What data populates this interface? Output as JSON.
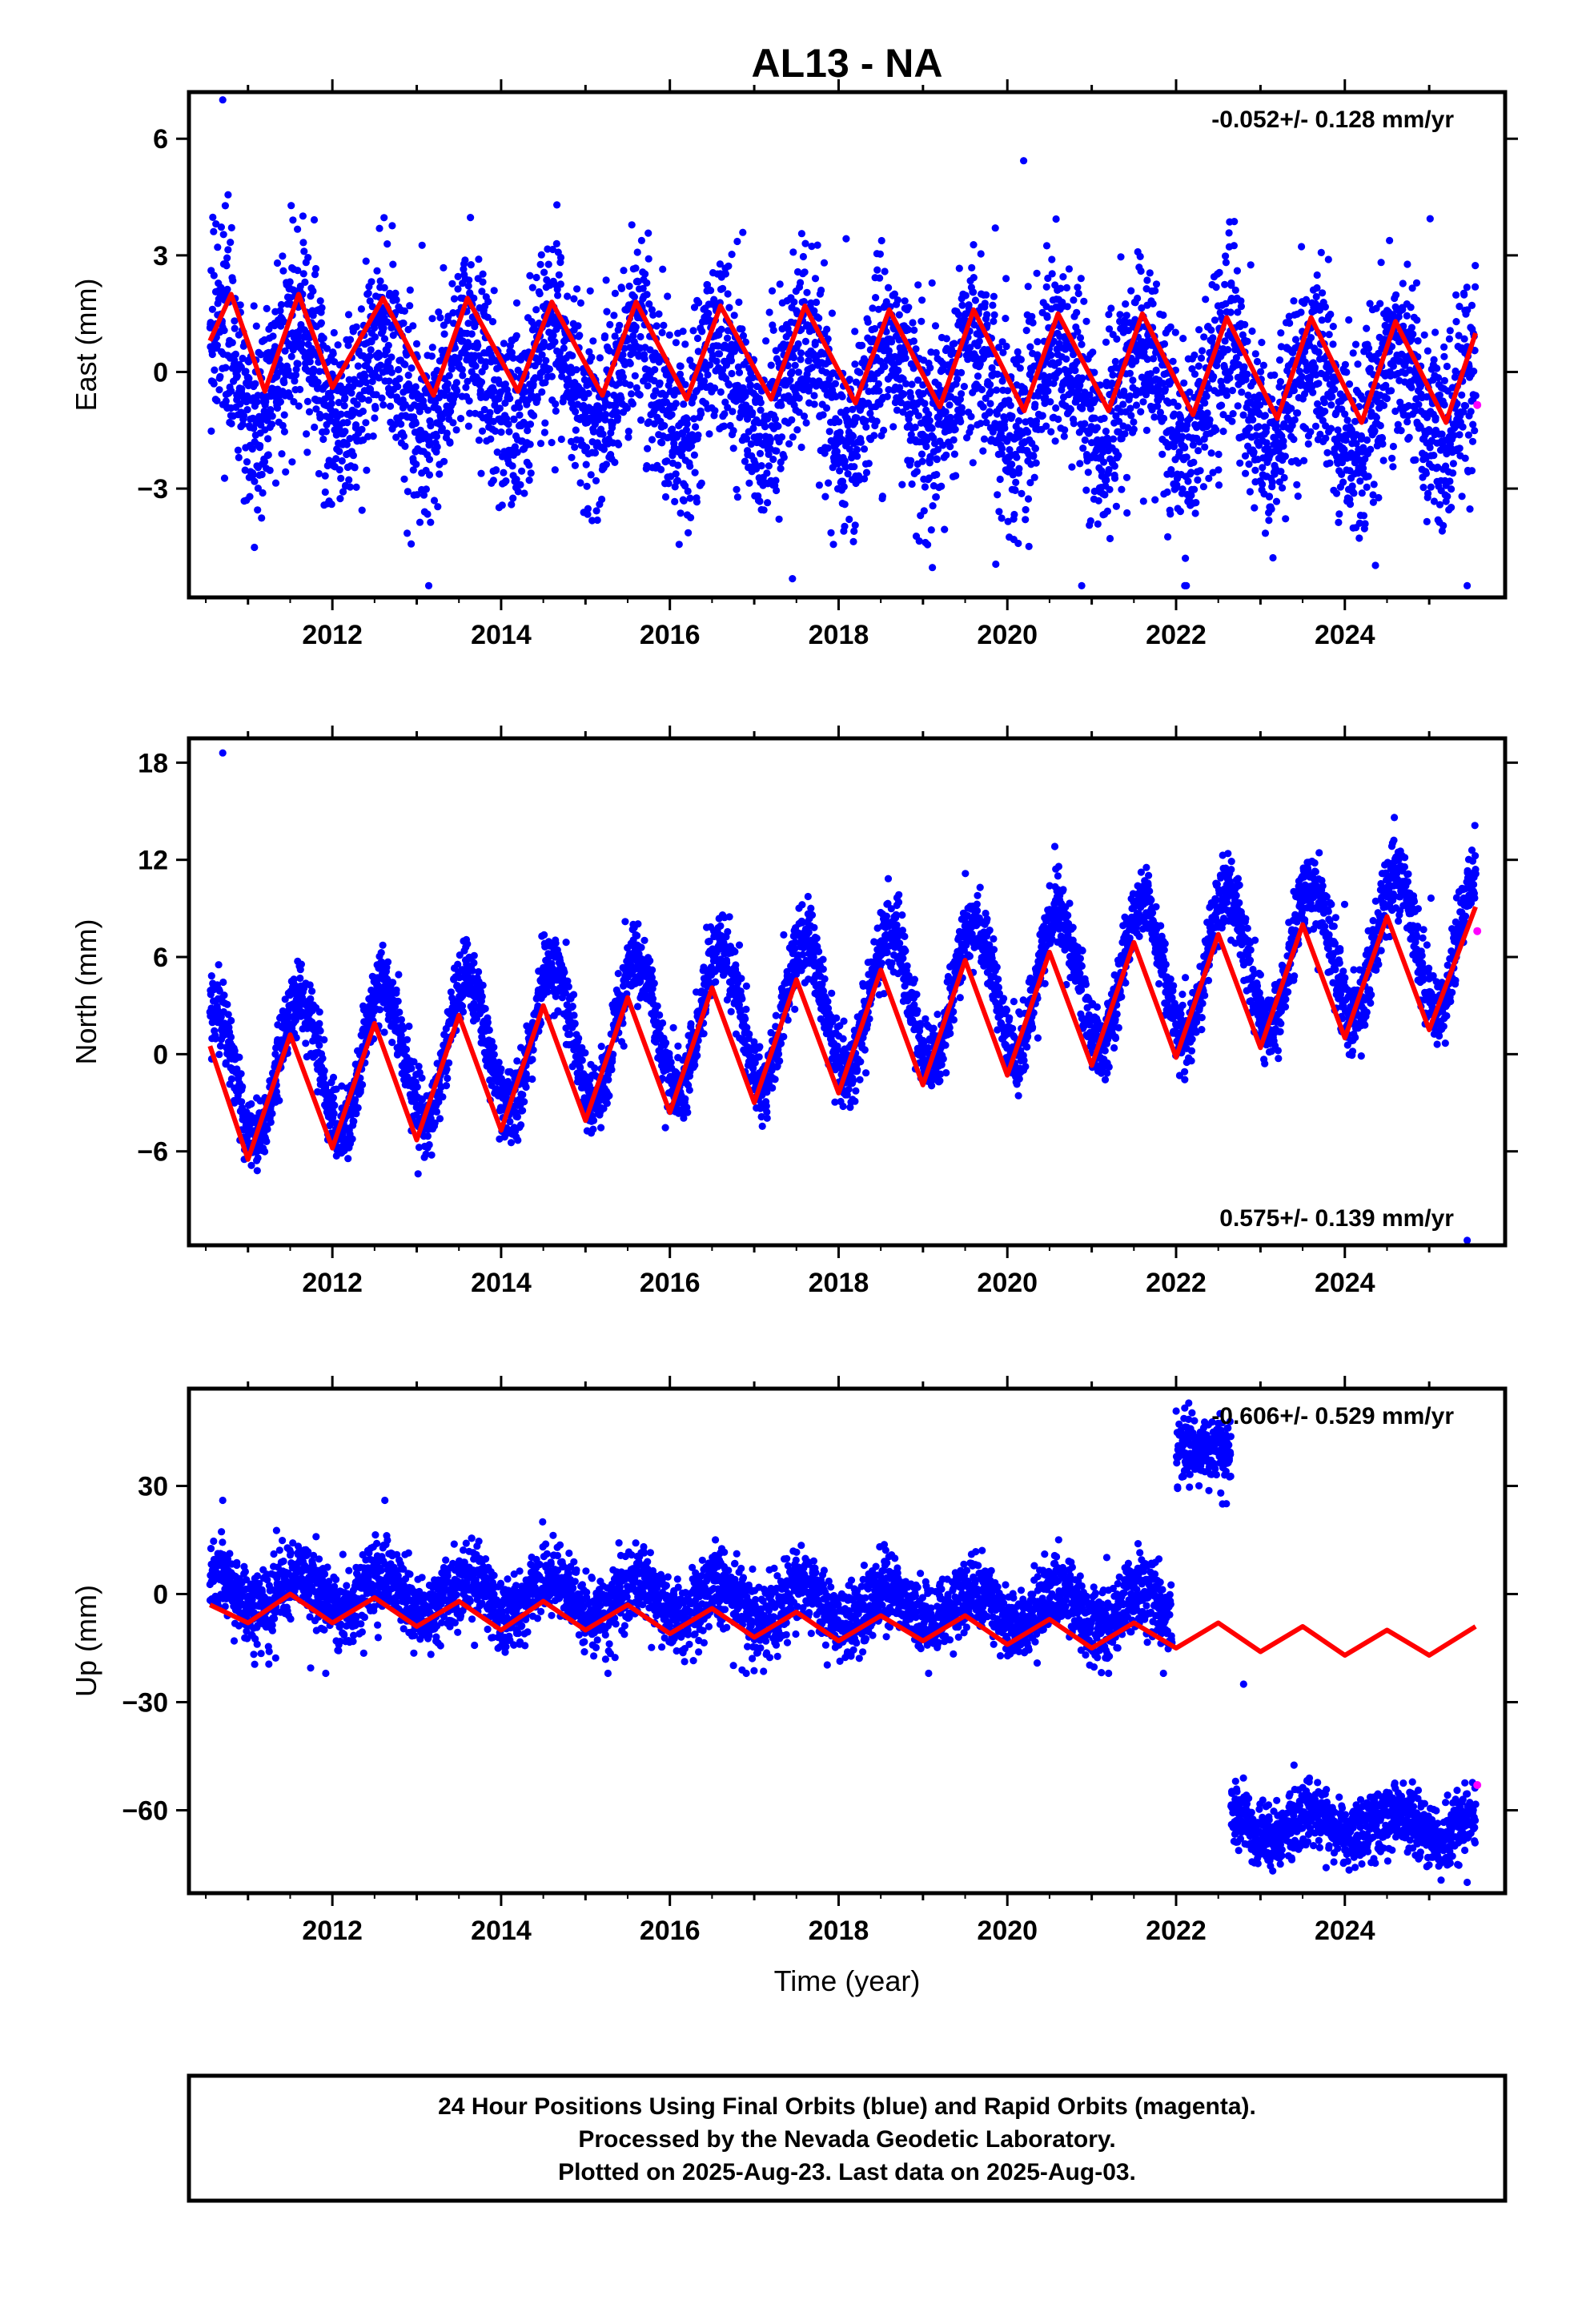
{
  "title": "AL13 - NA",
  "xlabel": "Time (year)",
  "footer": {
    "line1": "24 Hour Positions Using Final Orbits (blue) and Rapid Orbits (magenta).",
    "line2": "Processed by the Nevada Geodetic Laboratory.",
    "line3": "Plotted on 2025-Aug-23. Last data on 2025-Aug-03."
  },
  "colors": {
    "final": "#0000ff",
    "rapid": "#ff00ff",
    "model": "#ff0000"
  },
  "chart_data": [
    {
      "type": "scatter",
      "panel": "east",
      "title": "AL13 - NA",
      "ylabel": "East (mm)",
      "xlabel": "",
      "rate_label": "-0.052+/- 0.128 mm/yr",
      "rate_position": "top-right",
      "xlim": [
        2010.3,
        2025.9
      ],
      "ylim": [
        -5.8,
        7.2
      ],
      "xticks": [
        2012,
        2014,
        2016,
        2018,
        2020,
        2022,
        2024
      ],
      "yticks": [
        -3,
        0,
        3,
        6
      ],
      "ytick_labels": [
        "−3",
        "0",
        "3",
        "6"
      ],
      "grid": false,
      "series": [
        {
          "kind": "daily_positions_final",
          "span": [
            2010.55,
            2025.55
          ],
          "mean": 0.0,
          "trend_mm_per_yr": -0.052,
          "annual_amp": 1.2,
          "scatter": 1.2,
          "extremes": [
            -5.5,
            7.0
          ]
        },
        {
          "kind": "model_fit",
          "x": [
            2010.55,
            2010.8,
            2011.2,
            2011.6,
            2012.0,
            2012.6,
            2013.2,
            2013.6,
            2014.2,
            2014.6,
            2015.2,
            2015.6,
            2016.2,
            2016.6,
            2017.2,
            2017.6,
            2018.2,
            2018.6,
            2019.2,
            2019.6,
            2020.2,
            2020.6,
            2021.2,
            2021.6,
            2022.2,
            2022.6,
            2023.2,
            2023.6,
            2024.2,
            2024.6,
            2025.2,
            2025.55
          ],
          "y": [
            0.8,
            2.0,
            -0.5,
            2.0,
            -0.4,
            1.9,
            -0.6,
            1.9,
            -0.5,
            1.8,
            -0.6,
            1.8,
            -0.7,
            1.7,
            -0.7,
            1.7,
            -0.8,
            1.6,
            -0.9,
            1.6,
            -1.0,
            1.5,
            -1.0,
            1.5,
            -1.1,
            1.4,
            -1.2,
            1.4,
            -1.3,
            1.3,
            -1.3,
            1.0
          ]
        },
        {
          "kind": "daily_positions_rapid",
          "x": [
            2025.57
          ],
          "y": [
            -0.85
          ]
        }
      ]
    },
    {
      "type": "scatter",
      "panel": "north",
      "ylabel": "North (mm)",
      "xlabel": "",
      "rate_label": "0.575+/- 0.139 mm/yr",
      "rate_position": "bottom-right",
      "xlim": [
        2010.3,
        2025.9
      ],
      "ylim": [
        -11.8,
        19.5
      ],
      "xticks": [
        2012,
        2014,
        2016,
        2018,
        2020,
        2022,
        2024
      ],
      "yticks": [
        -6,
        0,
        6,
        12,
        18
      ],
      "ytick_labels": [
        "−6",
        "0",
        "6",
        "12",
        "18"
      ],
      "grid": false,
      "series": [
        {
          "kind": "daily_positions_final",
          "span": [
            2010.55,
            2025.55
          ],
          "mean": -1.3,
          "trend_mm_per_yr": 0.575,
          "annual_amp": 4.3,
          "scatter": 1.1,
          "extremes": [
            -11.5,
            18.6
          ]
        },
        {
          "kind": "model_fit",
          "x": [
            2010.55,
            2011.0,
            2011.5,
            2012.0,
            2012.5,
            2013.0,
            2013.5,
            2014.0,
            2014.5,
            2015.0,
            2015.5,
            2016.0,
            2016.5,
            2017.0,
            2017.5,
            2018.0,
            2018.5,
            2019.0,
            2019.5,
            2020.0,
            2020.5,
            2021.0,
            2021.5,
            2022.0,
            2022.5,
            2023.0,
            2023.5,
            2024.0,
            2024.5,
            2025.0,
            2025.55
          ],
          "y": [
            0.5,
            -6.5,
            1.2,
            -5.8,
            1.9,
            -5.3,
            2.4,
            -4.7,
            3.0,
            -4.1,
            3.5,
            -3.6,
            4.1,
            -3.0,
            4.6,
            -2.4,
            5.2,
            -1.9,
            5.8,
            -1.3,
            6.3,
            -0.7,
            6.9,
            -0.2,
            7.4,
            0.4,
            8.0,
            1.0,
            8.5,
            1.5,
            9.1
          ]
        },
        {
          "kind": "daily_positions_rapid",
          "x": [
            2025.57
          ],
          "y": [
            7.6
          ]
        }
      ]
    },
    {
      "type": "scatter",
      "panel": "up",
      "ylabel": "Up (mm)",
      "xlabel": "Time (year)",
      "rate_label": "-0.606+/- 0.529 mm/yr",
      "rate_position": "top-right",
      "xlim": [
        2010.3,
        2025.9
      ],
      "ylim": [
        -83,
        57
      ],
      "xticks": [
        2012,
        2014,
        2016,
        2018,
        2020,
        2022,
        2024
      ],
      "yticks": [
        -60,
        -30,
        0,
        30
      ],
      "ytick_labels": [
        "−60",
        "−30",
        "0",
        "30"
      ],
      "grid": false,
      "series": [
        {
          "kind": "daily_positions_final",
          "span": [
            2010.55,
            2021.95
          ],
          "mean": 1.0,
          "trend_mm_per_yr": -0.5,
          "annual_amp": 5.0,
          "scatter": 5.0,
          "extremes": [
            -22,
            26
          ]
        },
        {
          "kind": "daily_positions_final",
          "span": [
            2022.0,
            2022.65
          ],
          "mean": 40.0,
          "trend_mm_per_yr": 0.0,
          "annual_amp": 0.0,
          "scatter": 4.5,
          "extremes": [
            25,
            53
          ]
        },
        {
          "kind": "daily_positions_final",
          "span": [
            2022.65,
            2025.55
          ],
          "mean": -64.0,
          "trend_mm_per_yr": 0.0,
          "annual_amp": 3.5,
          "scatter": 4.5,
          "extremes": [
            -80,
            -25
          ]
        },
        {
          "kind": "model_fit",
          "x": [
            2010.55,
            2011.0,
            2011.5,
            2012.0,
            2012.5,
            2013.0,
            2013.5,
            2014.0,
            2014.5,
            2015.0,
            2015.5,
            2016.0,
            2016.5,
            2017.0,
            2017.5,
            2018.0,
            2018.5,
            2019.0,
            2019.5,
            2020.0,
            2020.5,
            2021.0,
            2021.5,
            2022.0,
            2022.5,
            2023.0,
            2023.5,
            2024.0,
            2024.5,
            2025.0,
            2025.55
          ],
          "y": [
            -3,
            -8,
            0,
            -8,
            -1,
            -9,
            -2,
            -10,
            -2,
            -10,
            -3,
            -11,
            -4,
            -12,
            -5,
            -13,
            -6,
            -13,
            -6,
            -14,
            -7,
            -15,
            -8,
            -15,
            -8,
            -16,
            -9,
            -17,
            -10,
            -17,
            -9
          ]
        },
        {
          "kind": "daily_positions_rapid",
          "x": [
            2025.57
          ],
          "y": [
            -53
          ]
        }
      ]
    }
  ]
}
